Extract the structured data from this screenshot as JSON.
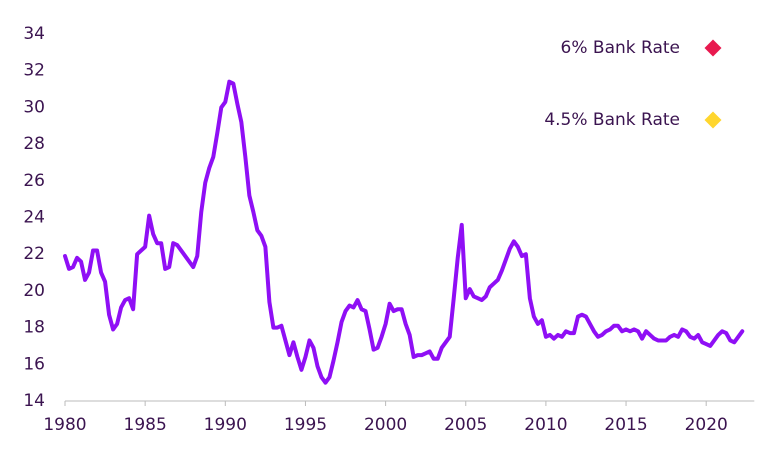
{
  "chart_data": {
    "type": "line",
    "x": [
      1980,
      1980.25,
      1980.5,
      1980.75,
      1981,
      1981.25,
      1981.5,
      1981.75,
      1982,
      1982.25,
      1982.5,
      1982.75,
      1983,
      1983.25,
      1983.5,
      1983.75,
      1984,
      1984.25,
      1984.5,
      1984.75,
      1985,
      1985.25,
      1985.5,
      1985.75,
      1986,
      1986.25,
      1986.5,
      1986.75,
      1987,
      1987.25,
      1987.5,
      1987.75,
      1988,
      1988.25,
      1988.5,
      1988.75,
      1989,
      1989.25,
      1989.5,
      1989.75,
      1990,
      1990.25,
      1990.5,
      1990.75,
      1991,
      1991.25,
      1991.5,
      1991.75,
      1992,
      1992.25,
      1992.5,
      1992.75,
      1993,
      1993.25,
      1993.5,
      1993.75,
      1994,
      1994.25,
      1994.5,
      1994.75,
      1995,
      1995.25,
      1995.5,
      1995.75,
      1996,
      1996.25,
      1996.5,
      1996.75,
      1997,
      1997.25,
      1997.5,
      1997.75,
      1998,
      1998.25,
      1998.5,
      1998.75,
      1999,
      1999.25,
      1999.5,
      1999.75,
      2000,
      2000.25,
      2000.5,
      2000.75,
      2001,
      2001.25,
      2001.5,
      2001.75,
      2002,
      2002.25,
      2002.5,
      2002.75,
      2003,
      2003.25,
      2003.5,
      2003.75,
      2004,
      2004.25,
      2004.5,
      2004.75,
      2005,
      2005.25,
      2005.5,
      2005.75,
      2006,
      2006.25,
      2006.5,
      2006.75,
      2007,
      2007.25,
      2007.5,
      2007.75,
      2008,
      2008.25,
      2008.5,
      2008.75,
      2009,
      2009.25,
      2009.5,
      2009.75,
      2010,
      2010.25,
      2010.5,
      2010.75,
      2011,
      2011.25,
      2011.5,
      2011.75,
      2012,
      2012.25,
      2012.5,
      2012.75,
      2013,
      2013.25,
      2013.5,
      2013.75,
      2014,
      2014.25,
      2014.5,
      2014.75,
      2015,
      2015.25,
      2015.5,
      2015.75,
      2016,
      2016.25,
      2016.5,
      2016.75,
      2017,
      2017.25,
      2017.5,
      2017.75,
      2018,
      2018.25,
      2018.5,
      2018.75,
      2019,
      2019.25,
      2019.5,
      2019.75,
      2020,
      2020.25,
      2020.5,
      2020.75,
      2021,
      2021.25,
      2021.5,
      2021.75,
      2022,
      2022.25
    ],
    "series": [
      {
        "color": "#8f0ff5",
        "values": [
          21.9,
          21.2,
          21.3,
          21.8,
          21.6,
          20.6,
          21.0,
          22.2,
          22.2,
          21.0,
          20.5,
          18.7,
          17.9,
          18.2,
          19.1,
          19.5,
          19.6,
          19.0,
          22.0,
          22.2,
          22.4,
          24.1,
          23.1,
          22.6,
          22.6,
          21.2,
          21.3,
          22.6,
          22.5,
          22.2,
          21.9,
          21.6,
          21.3,
          21.9,
          24.3,
          25.9,
          26.7,
          27.3,
          28.6,
          30.0,
          30.3,
          31.4,
          31.3,
          30.2,
          29.2,
          27.3,
          25.2,
          24.3,
          23.3,
          23.0,
          22.4,
          19.4,
          18.0,
          18.0,
          18.1,
          17.3,
          16.5,
          17.2,
          16.4,
          15.7,
          16.4,
          17.3,
          16.9,
          15.9,
          15.3,
          15.0,
          15.3,
          16.2,
          17.2,
          18.3,
          18.9,
          19.2,
          19.1,
          19.5,
          19.0,
          18.9,
          17.9,
          16.8,
          16.9,
          17.5,
          18.2,
          19.3,
          18.9,
          19.0,
          19.0,
          18.2,
          17.6,
          16.4,
          16.5,
          16.5,
          16.6,
          16.7,
          16.3,
          16.3,
          16.9,
          17.2,
          17.5,
          19.6,
          21.8,
          23.6,
          19.6,
          20.1,
          19.7,
          19.6,
          19.5,
          19.7,
          20.2,
          20.4,
          20.6,
          21.1,
          21.7,
          22.3,
          22.7,
          22.4,
          21.9,
          22.0,
          19.6,
          18.6,
          18.2,
          18.4,
          17.5,
          17.6,
          17.4,
          17.6,
          17.5,
          17.8,
          17.7,
          17.7,
          18.6,
          18.7,
          18.6,
          18.2,
          17.8,
          17.5,
          17.6,
          17.8,
          17.9,
          18.1,
          18.1,
          17.8,
          17.9,
          17.8,
          17.9,
          17.8,
          17.4,
          17.8,
          17.6,
          17.4,
          17.3,
          17.3,
          17.3,
          17.5,
          17.6,
          17.5,
          17.9,
          17.8,
          17.5,
          17.4,
          17.6,
          17.2,
          17.1,
          17.0,
          17.3,
          17.6,
          17.8,
          17.7,
          17.3,
          17.2,
          17.5,
          17.8
        ]
      }
    ],
    "markers": [
      {
        "name": "6% Bank Rate",
        "color": "#e8194f"
      },
      {
        "name": "4.5% Bank Rate",
        "color": "#ffd62e"
      }
    ],
    "xlim": [
      1980,
      2023
    ],
    "xticks": [
      1980,
      1985,
      1990,
      1995,
      2000,
      2005,
      2010,
      2015,
      2020
    ],
    "ylim": [
      14,
      34
    ],
    "yticks": [
      14,
      16,
      18,
      20,
      22,
      24,
      26,
      28,
      30,
      32,
      34
    ]
  }
}
